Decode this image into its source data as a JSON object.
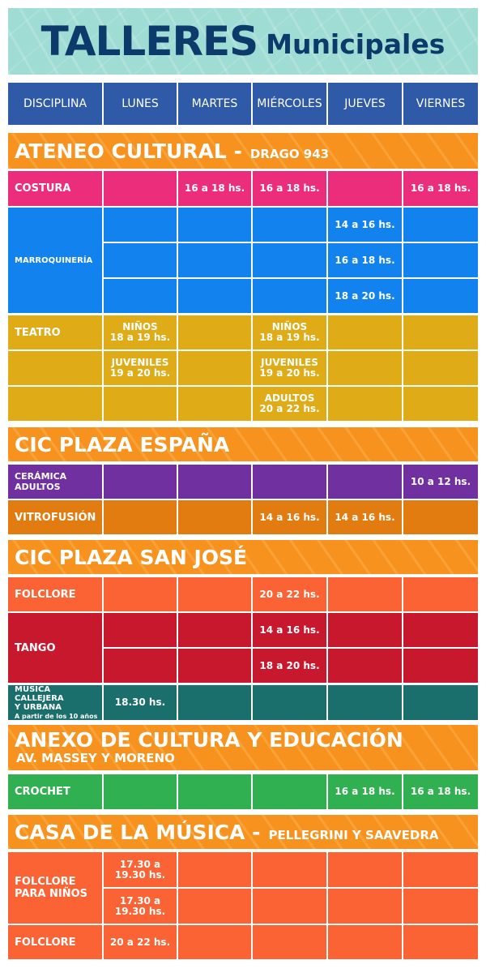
{
  "title": {
    "main": "TALLERES",
    "sub": "Municipales"
  },
  "columns": [
    "DISCIPLINA",
    "LUNES",
    "MARTES",
    "MIÉRCOLES",
    "JUEVES",
    "VIERNES"
  ],
  "sections": {
    "ateneo": {
      "name": "ATENEO CULTURAL -",
      "address": "DRAGO 943"
    },
    "espana": {
      "name": "CIC PLAZA ESPAÑA"
    },
    "sanjose": {
      "name": "CIC PLAZA SAN JOSÉ"
    },
    "anexo": {
      "name": "ANEXO DE CULTURA Y EDUCACIÓN",
      "address": "AV. MASSEY Y MORENO"
    },
    "casa": {
      "name": "CASA DE LA MÚSICA -",
      "address": "PELLEGRINI Y SAAVEDRA"
    }
  },
  "rows": {
    "costura": {
      "label": "COSTURA",
      "martes": "16 a 18 hs.",
      "miercoles": "16 a 18 hs.",
      "viernes": "16 a 18 hs."
    },
    "marroquineria": {
      "label": "MARROQUINERÍA",
      "jueves": [
        "14 a 16 hs.",
        "16 a 18 hs.",
        "18 a 20 hs."
      ]
    },
    "teatro": {
      "label": "TEATRO",
      "lunes1": "NIÑOS",
      "lunes1b": "18 a 19 hs.",
      "miercoles1": "NIÑOS",
      "miercoles1b": "18 a 19 hs.",
      "lunes2": "JUVENILES",
      "lunes2b": "19 a 20 hs.",
      "miercoles2": "JUVENILES",
      "miercoles2b": "19 a 20 hs.",
      "miercoles3": "ADULTOS",
      "miercoles3b": "20 a 22 hs."
    },
    "ceramica": {
      "label1": "CERÁMICA",
      "label2": "ADULTOS",
      "viernes": "10 a 12 hs."
    },
    "vitrofusion": {
      "label": "VITROFUSIÓN",
      "miercoles": "14 a 16 hs.",
      "jueves": "14 a 16 hs."
    },
    "folclore_sj": {
      "label": "FOLCLORE",
      "miercoles": "20 a 22 hs."
    },
    "tango": {
      "label": "TANGO",
      "miercoles": [
        "14 a 16 hs.",
        "18 a 20 hs."
      ]
    },
    "musica": {
      "label1": "MÚSICA CALLEJERA",
      "label2": "Y URBANA",
      "note": "A partir de los 10 años",
      "lunes": "18.30 hs."
    },
    "crochet": {
      "label": "CROCHET",
      "jueves": "16 a 18 hs.",
      "viernes": "16 a 18 hs."
    },
    "folclore_ninos": {
      "label1": "FOLCLORE",
      "label2": "PARA NIÑOS",
      "lunes1a": "17.30 a",
      "lunes1b": "19.30 hs.",
      "lunes2a": "17.30 a",
      "lunes2b": "19.30 hs."
    },
    "folclore_casa": {
      "label": "FOLCLORE",
      "lunes": "20 a 22 hs."
    }
  },
  "colors": {
    "banner": "#9fdcd3",
    "title": "#0c3a6b",
    "header": "#2f5aa8",
    "section": "#f7921e",
    "costura": "#ec2d7b",
    "marroquineria": "#1282ee",
    "teatro": "#dfab16",
    "ceramica": "#7030a0",
    "vitrofusion": "#e27c10",
    "folclore": "#fb6335",
    "tango": "#c8182e",
    "musica": "#1a6e6b",
    "crochet": "#30b050"
  }
}
